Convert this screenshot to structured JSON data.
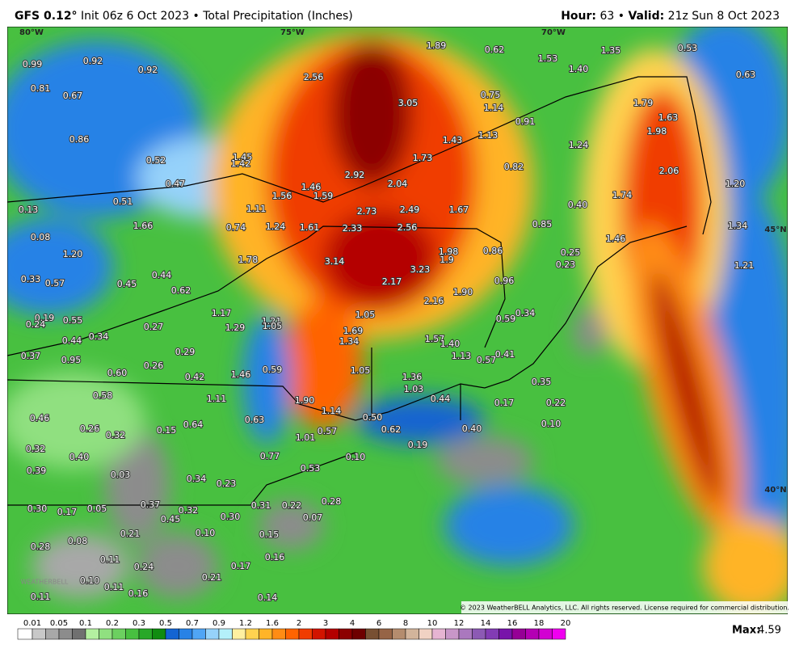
{
  "header": {
    "model": "GFS 0.12°",
    "title": "Init 06z 6 Oct 2023 • Total Precipitation (Inches)",
    "hour_label": "Hour:",
    "hour": "63 •",
    "valid_label": "Valid:",
    "valid": "21z Sun 8 Oct 2023"
  },
  "map": {
    "grid_labels": [
      "80°W",
      "75°W",
      "70°W",
      "45°N",
      "40°N"
    ],
    "labels": [
      "0.99",
      "0.92",
      "0.92",
      "0.81",
      "0.67",
      "2.56",
      "3.05",
      "1.89",
      "0.62",
      "1.53",
      "1.35",
      "0.53",
      "1.40",
      "0.63",
      "0.75",
      "1.14",
      "0.91",
      "1.79",
      "1.63",
      "1.98",
      "0.86",
      "1.45",
      "1.42",
      "2.92",
      "1.73",
      "1.43",
      "1.13",
      "1.24",
      "0.82",
      "2.06",
      "0.52",
      "0.47",
      "0.51",
      "1.56",
      "1.46",
      "1.59",
      "2.04",
      "2.73",
      "2.49",
      "1.67",
      "0.40",
      "1.74",
      "1.20",
      "1.11",
      "0.13",
      "1.66",
      "0.74",
      "1.24",
      "1.61",
      "2.33",
      "2.56",
      "0.85",
      "1.34",
      "0.08",
      "1.46",
      "1.20",
      "3.14",
      "1.98",
      "1.9",
      "0.86",
      "0.25",
      "0.23",
      "1.78",
      "0.33",
      "0.57",
      "0.45",
      "0.44",
      "0.62",
      "3.23",
      "2.17",
      "0.96",
      "1.21",
      "1.90",
      "2.16",
      "1.17",
      "0.34",
      "0.19",
      "0.24",
      "0.55",
      "1.05",
      "1.21",
      "1.05",
      "1.29",
      "0.27",
      "0.59",
      "1.69",
      "0.34",
      "0.44",
      "1.34",
      "1.57",
      "1.40",
      "0.29",
      "0.37",
      "0.95",
      "1.13",
      "0.57",
      "0.41",
      "0.26",
      "1.46",
      "0.59",
      "1.05",
      "0.60",
      "0.42",
      "1.36",
      "0.35",
      "1.03",
      "0.58",
      "1.11",
      "1.90",
      "0.44",
      "0.17",
      "0.22",
      "1.14",
      "0.46",
      "0.63",
      "0.50",
      "0.10",
      "0.26",
      "0.15",
      "0.64",
      "0.62",
      "0.57",
      "0.40",
      "0.32",
      "1.01",
      "0.19",
      "0.32",
      "0.40",
      "0.77",
      "0.10",
      "0.53",
      "0.39",
      "0.03",
      "0.34",
      "0.23",
      "0.28",
      "0.30",
      "0.17",
      "0.05",
      "0.37",
      "0.32",
      "0.31",
      "0.22",
      "0.45",
      "0.30",
      "0.07",
      "0.21",
      "0.10",
      "0.15",
      "0.08",
      "0.28",
      "0.16",
      "0.11",
      "0.24",
      "0.17",
      "0.10",
      "0.11",
      "0.21",
      "0.16",
      "0.11",
      "0.14"
    ],
    "logo": "WEATHERBELL",
    "copyright": "© 2023 WeatherBELL Analytics, LLC. All rights reserved. License required for commercial distribution."
  },
  "legend": {
    "labels": [
      "0.01",
      "0.05",
      "0.1",
      "0.2",
      "0.3",
      "0.5",
      "0.7",
      "0.9",
      "1.2",
      "1.6",
      "2",
      "3",
      "4",
      "6",
      "8",
      "10",
      "12",
      "14",
      "16",
      "18",
      "20"
    ],
    "colors": [
      "#ffffff",
      "#c8c8c8",
      "#a8a8a8",
      "#8c8c8c",
      "#707070",
      "#b4f0a0",
      "#90e080",
      "#6cd060",
      "#48c040",
      "#28a828",
      "#108c10",
      "#1464d2",
      "#2882e6",
      "#50a5f5",
      "#96d2fa",
      "#b4f0fa",
      "#fff0a0",
      "#ffd250",
      "#ffb428",
      "#ff8c14",
      "#ff6400",
      "#f03c00",
      "#d21400",
      "#b40000",
      "#8c0000",
      "#6e0000",
      "#785032",
      "#966446",
      "#b48c6e",
      "#d2b49b",
      "#f0d2c3",
      "#e6b4d2",
      "#c896c8",
      "#aa78be",
      "#8c5ab4",
      "#823cb4",
      "#7814aa",
      "#960096",
      "#b400b4",
      "#d200d2",
      "#f000f0"
    ],
    "max_label": "Max:",
    "max": "4.59"
  }
}
